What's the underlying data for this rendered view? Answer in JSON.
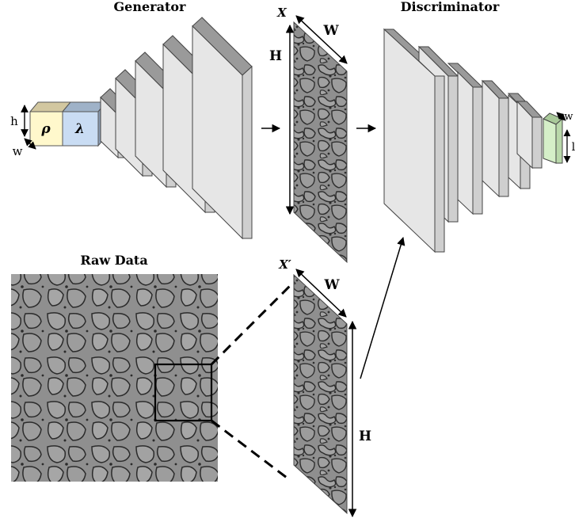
{
  "labels": {
    "generator": "Generator",
    "discriminator": "Discriminator",
    "raw_data": "Raw Data",
    "x": "X",
    "x_prime": "X′",
    "W": "W",
    "H": "H",
    "h": "h",
    "w": "w",
    "rho": "ρ",
    "lambda": "λ",
    "disc_w": "w",
    "disc_l": "l"
  },
  "colors": {
    "layer_face": "#e6e6e6",
    "layer_side": "#cfcfcf",
    "layer_top": "#9a9a9a",
    "rho_block": "#fff8cc",
    "rho_top": "#d2c7a0",
    "lambda_block": "#c9dcf3",
    "lambda_top": "#9fb2c8",
    "output_block": "#d5efc8",
    "output_top": "#a9c99a",
    "micro_bg": "#8c8c8c",
    "micro_pore": "#2e2e2e"
  }
}
